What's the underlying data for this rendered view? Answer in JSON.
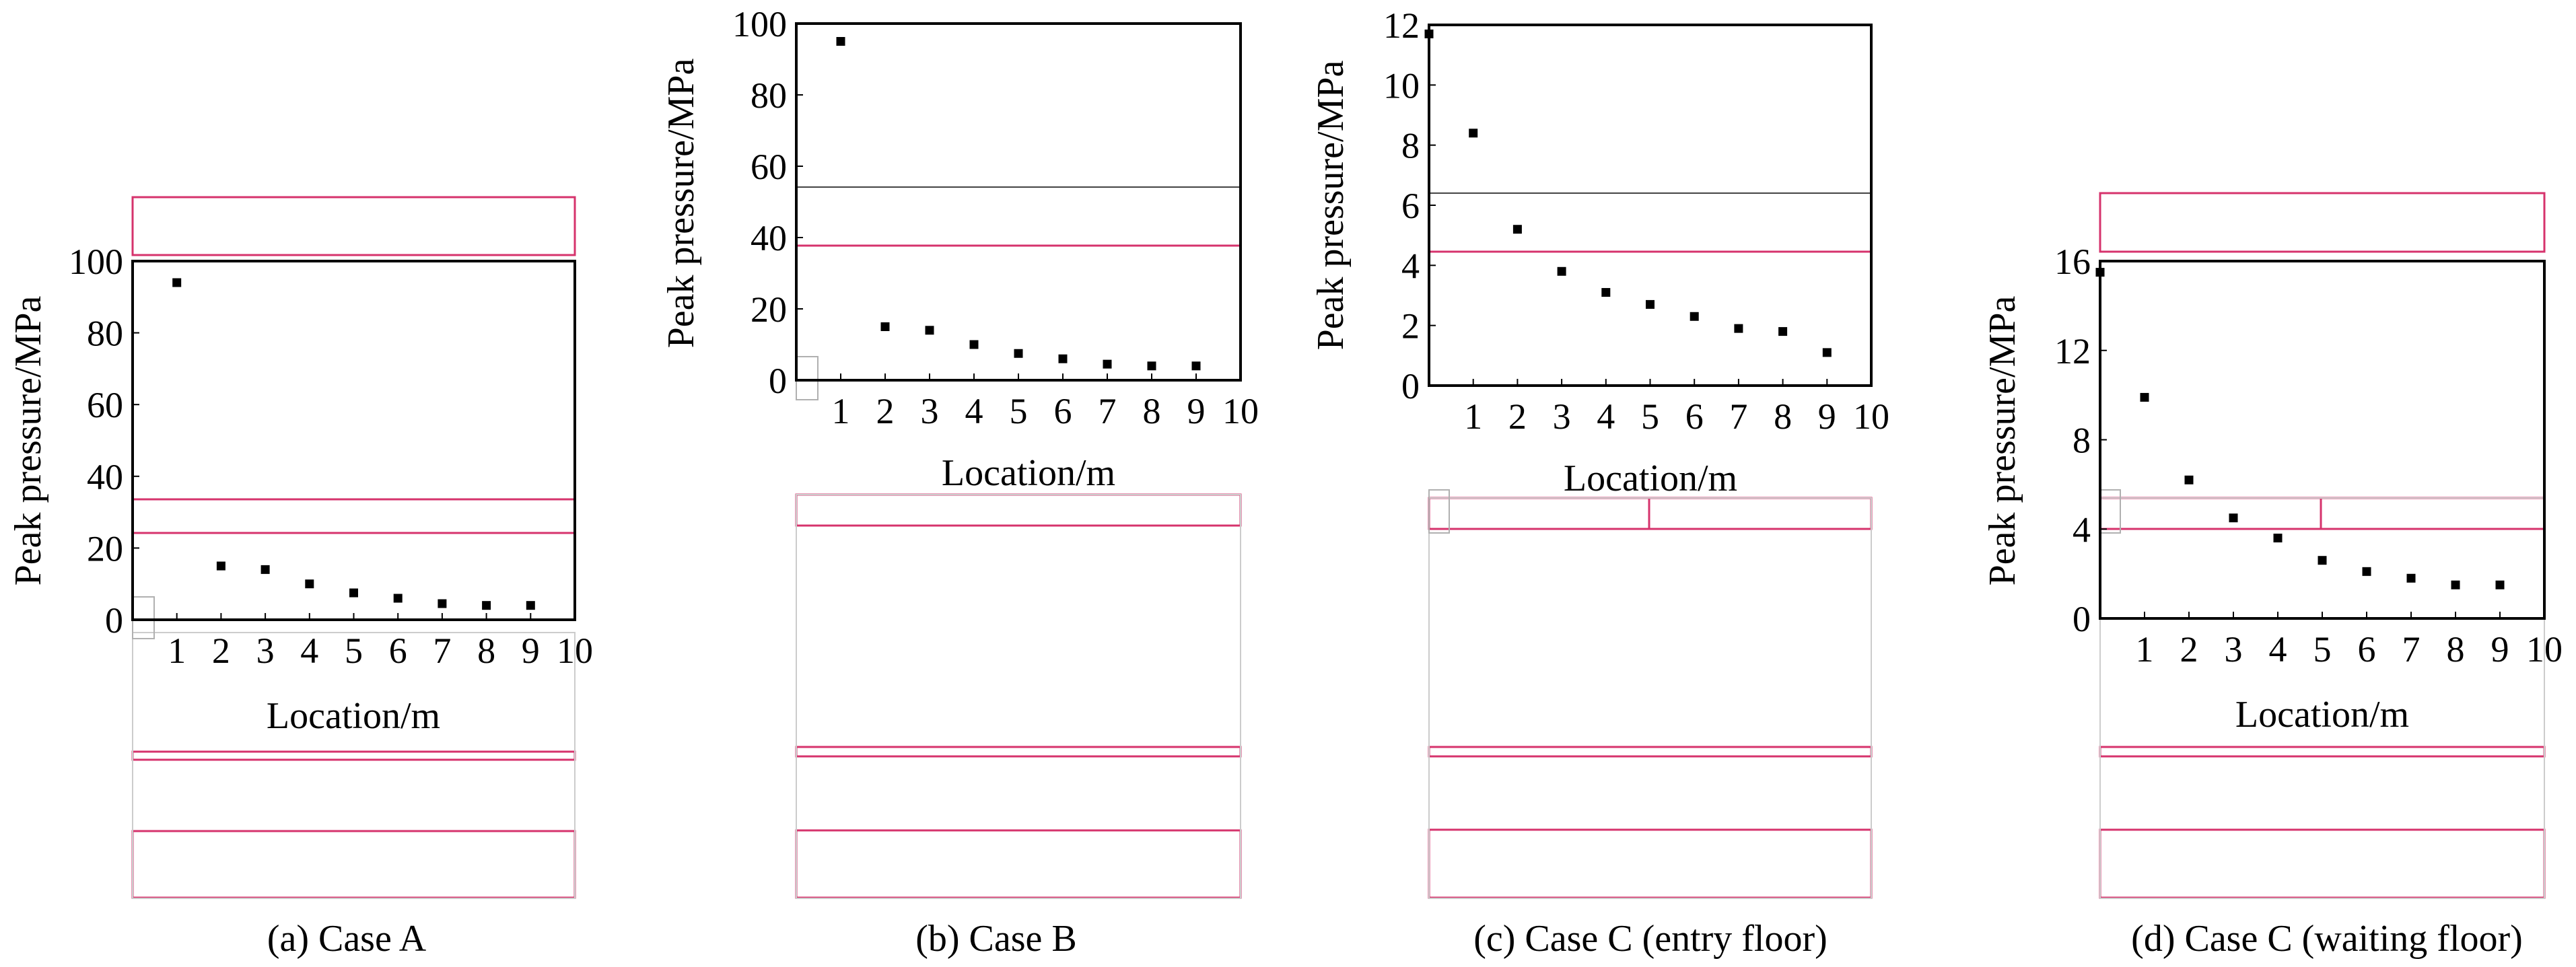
{
  "figure": {
    "panels": [
      {
        "id": "a",
        "caption": "(a) Case A",
        "chart_data": {
          "type": "scatter",
          "xlabel": "Location/m",
          "ylabel": "Peak pressure/MPa",
          "xlim": [
            0,
            10
          ],
          "ylim": [
            0,
            100
          ],
          "x_ticks": [
            1,
            2,
            3,
            4,
            5,
            6,
            7,
            8,
            9,
            10
          ],
          "y_ticks": [
            0,
            20,
            40,
            60,
            80,
            100
          ],
          "grid": false,
          "points": [
            [
              1,
              94
            ],
            [
              2,
              15
            ],
            [
              3,
              14
            ],
            [
              4,
              10
            ],
            [
              5,
              7.5
            ],
            [
              6,
              6
            ],
            [
              7,
              4.5
            ],
            [
              8,
              4
            ],
            [
              9,
              4
            ]
          ]
        }
      },
      {
        "id": "b",
        "caption": "(b) Case B",
        "chart_data": {
          "type": "scatter",
          "xlabel": "Location/m",
          "ylabel": "Peak pressure/MPa",
          "xlim": [
            0,
            10
          ],
          "ylim": [
            0,
            100
          ],
          "x_ticks": [
            1,
            2,
            3,
            4,
            5,
            6,
            7,
            8,
            9,
            10
          ],
          "y_ticks": [
            0,
            20,
            40,
            60,
            80,
            100
          ],
          "grid": false,
          "points": [
            [
              1,
              95
            ],
            [
              2,
              15
            ],
            [
              3,
              14
            ],
            [
              4,
              10
            ],
            [
              5,
              7.5
            ],
            [
              6,
              6
            ],
            [
              7,
              4.5
            ],
            [
              8,
              4
            ],
            [
              9,
              4
            ]
          ]
        }
      },
      {
        "id": "c",
        "caption": "(c) Case C (entry floor)",
        "chart_data": {
          "type": "scatter",
          "xlabel": "Location/m",
          "ylabel": "Peak pressure/MPa",
          "xlim": [
            0,
            10
          ],
          "ylim": [
            0,
            12
          ],
          "x_ticks": [
            1,
            2,
            3,
            4,
            5,
            6,
            7,
            8,
            9,
            10
          ],
          "y_ticks": [
            0,
            2,
            4,
            6,
            8,
            10,
            12
          ],
          "grid": false,
          "points": [
            [
              0,
              11.7
            ],
            [
              1,
              8.4
            ],
            [
              2,
              5.2
            ],
            [
              3,
              3.8
            ],
            [
              4,
              3.1
            ],
            [
              5,
              2.7
            ],
            [
              6,
              2.3
            ],
            [
              7,
              1.9
            ],
            [
              8,
              1.8
            ],
            [
              9,
              1.1
            ]
          ]
        }
      },
      {
        "id": "d",
        "caption": "(d) Case C (waiting floor)",
        "chart_data": {
          "type": "scatter",
          "xlabel": "Location/m",
          "ylabel": "Peak pressure/MPa",
          "xlim": [
            0,
            10
          ],
          "ylim": [
            0,
            16
          ],
          "x_ticks": [
            1,
            2,
            3,
            4,
            5,
            6,
            7,
            8,
            9,
            10
          ],
          "y_ticks": [
            0,
            4,
            8,
            12,
            16
          ],
          "grid": false,
          "points": [
            [
              0,
              15.5
            ],
            [
              1,
              9.9
            ],
            [
              2,
              6.2
            ],
            [
              3,
              4.5
            ],
            [
              4,
              3.6
            ],
            [
              5,
              2.6
            ],
            [
              6,
              2.1
            ],
            [
              7,
              1.8
            ],
            [
              8,
              1.5
            ],
            [
              9,
              1.5
            ]
          ]
        }
      }
    ]
  }
}
